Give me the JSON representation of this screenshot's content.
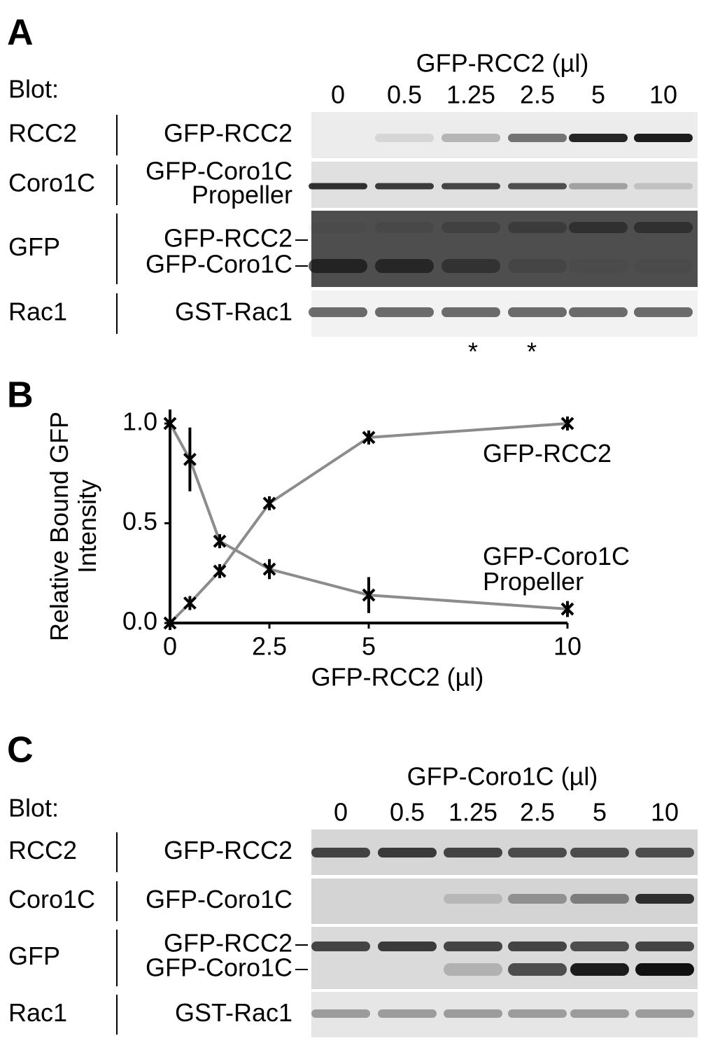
{
  "panel_a": {
    "letter": "A",
    "header": "GFP-RCC2 (µl)",
    "blot_label": "Blot:",
    "lanes": [
      "0",
      "0.5",
      "1.25",
      "2.5",
      "5",
      "10"
    ],
    "rows": [
      {
        "blot": "RCC2",
        "labels": [
          "GFP-RCC2"
        ]
      },
      {
        "blot": "Coro1C",
        "labels": [
          "GFP-Coro1C",
          "Propeller"
        ]
      },
      {
        "blot": "GFP",
        "labels": [
          "GFP-RCC2",
          "GFP-Coro1C"
        ]
      },
      {
        "blot": "Rac1",
        "labels": [
          "GST-Rac1"
        ]
      }
    ],
    "notes": [
      "*",
      "*"
    ]
  },
  "chart_data": {
    "type": "line",
    "panel_label": "B",
    "x_label": "GFP-RCC2 (µl)",
    "y_label": "Relative Bound GFP Intensity",
    "x": [
      0,
      0.5,
      1.25,
      2.5,
      5,
      10
    ],
    "series": [
      {
        "name": "GFP-RCC2",
        "color": "#8c8c8c",
        "values": [
          0,
          0.1,
          0.26,
          0.6,
          0.93,
          1.0
        ],
        "errors": [
          0.01,
          0.01,
          0.01,
          0.01,
          0.01,
          0.01
        ]
      },
      {
        "name": "GFP-Coro1C Propeller",
        "color": "#8c8c8c",
        "values": [
          1.0,
          0.82,
          0.41,
          0.27,
          0.14,
          0.07
        ],
        "errors": [
          0.01,
          0.16,
          0.02,
          0.05,
          0.09,
          0.04
        ]
      }
    ],
    "xlim": [
      0,
      10
    ],
    "xticks": [
      0,
      2.5,
      5,
      10
    ],
    "ylim": [
      0,
      1
    ],
    "yticks": [
      {
        "value": 0,
        "label": "0.0"
      },
      {
        "value": 0.5,
        "label": "0.5"
      },
      {
        "value": 1,
        "label": "1.0"
      }
    ]
  },
  "panel_c": {
    "letter": "C",
    "header": "GFP-Coro1C (µl)",
    "blot_label": "Blot:",
    "lanes": [
      "0",
      "0.5",
      "1.25",
      "2.5",
      "5",
      "10"
    ],
    "rows": [
      {
        "blot": "RCC2",
        "labels": [
          "GFP-RCC2"
        ]
      },
      {
        "blot": "Coro1C",
        "labels": [
          "GFP-Coro1C"
        ]
      },
      {
        "blot": "GFP",
        "labels": [
          "GFP-RCC2",
          "GFP-Coro1C"
        ]
      },
      {
        "blot": "Rac1",
        "labels": [
          "GST-Rac1"
        ]
      }
    ]
  }
}
